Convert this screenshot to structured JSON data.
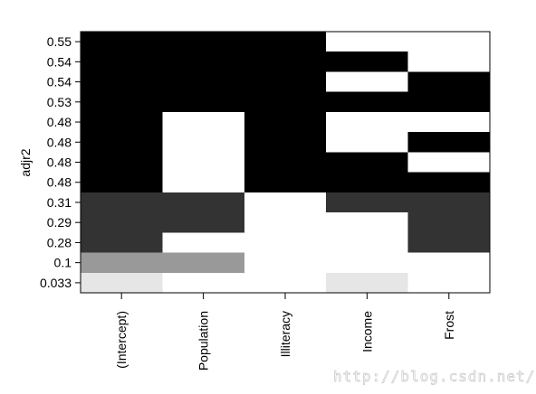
{
  "chart_data": {
    "type": "heatmap",
    "ylabel": "adjr2",
    "xlabel": "",
    "title": "",
    "x_categories": [
      "(Intercept)",
      "Population",
      "Illiteracy",
      "Income",
      "Frost"
    ],
    "y_categories": [
      "0.55",
      "0.54",
      "0.54",
      "0.53",
      "0.48",
      "0.48",
      "0.48",
      "0.48",
      "0.31",
      "0.29",
      "0.28",
      "0.1",
      "0.033"
    ],
    "cells": [
      [
        1,
        1,
        1,
        0,
        0
      ],
      [
        1,
        1,
        1,
        1,
        0
      ],
      [
        1,
        1,
        1,
        0,
        1
      ],
      [
        1,
        1,
        1,
        1,
        1
      ],
      [
        1,
        0,
        1,
        0,
        0
      ],
      [
        1,
        0,
        1,
        0,
        1
      ],
      [
        1,
        0,
        1,
        1,
        0
      ],
      [
        1,
        0,
        1,
        1,
        1
      ],
      [
        1,
        1,
        0,
        1,
        1
      ],
      [
        1,
        1,
        0,
        0,
        1
      ],
      [
        1,
        0,
        0,
        0,
        1
      ],
      [
        1,
        1,
        0,
        0,
        0
      ],
      [
        1,
        0,
        0,
        1,
        0
      ]
    ],
    "row_colors": [
      "#000000",
      "#000000",
      "#000000",
      "#000000",
      "#000000",
      "#000000",
      "#000000",
      "#000000",
      "#333333",
      "#333333",
      "#333333",
      "#999999",
      "#e6e6e6"
    ],
    "empty_color": "#ffffff"
  },
  "watermark": "http://blog.csdn.net/"
}
